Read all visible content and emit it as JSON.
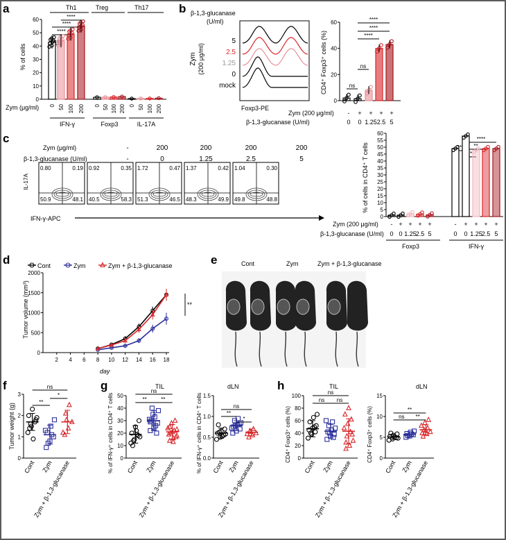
{
  "colors": {
    "red": "#d8262a",
    "darkred": "#a7151d",
    "pink": "#e98f97",
    "lightpink": "#f2b8be",
    "blue": "#2b2f9a",
    "black": "#000000"
  },
  "panels": {
    "a": {
      "letter": "a"
    },
    "b": {
      "letter": "b"
    },
    "c": {
      "letter": "c"
    },
    "d": {
      "letter": "d"
    },
    "e": {
      "letter": "e"
    },
    "f": {
      "letter": "f"
    },
    "g": {
      "letter": "g"
    },
    "h": {
      "letter": "h"
    }
  },
  "panel_a": {
    "headers": [
      "Th1",
      "Treg",
      "Th17"
    ],
    "ylabel": "% of cells",
    "zym_label": "Zym (μg/ml)",
    "doses": [
      "0",
      "50",
      "100",
      "200"
    ],
    "groups": [
      "IFN-γ",
      "Foxp3",
      "IL-17A"
    ],
    "sig": [
      "ns",
      "****",
      "****",
      "****"
    ]
  },
  "panel_b": {
    "title_line1": "β-1,3-glucanase",
    "title_line2": "(U/ml)",
    "zym_side_line1": "Zym",
    "zym_side_line2": "(200 μg/ml)",
    "track_labels": [
      "5",
      "2.5",
      "1.25",
      "0",
      "mock"
    ],
    "xaxis": "Foxp3-PE",
    "ylabel": "CD4⁺ Foxp3⁺ cells (%)",
    "row1_label": "Zym (200 μg/ml)",
    "row2_label": "β-1,3-glucanase (U/ml)",
    "row1_vals": [
      "-",
      "+",
      "+",
      "+",
      "+"
    ],
    "row2_vals": [
      "0",
      "0",
      "1.25",
      "2.5",
      "5"
    ],
    "sig": [
      "ns",
      "ns",
      "****",
      "****",
      "****"
    ]
  },
  "panel_c": {
    "zym_label": "Zym (μg/ml)",
    "gluc_label": "β-1,3-glucanase (U/ml)",
    "zym_vals": [
      "-",
      "200",
      "200",
      "200",
      "200"
    ],
    "gluc_vals": [
      "-",
      "0",
      "1.25",
      "2.5",
      "5"
    ],
    "quadrants": [
      [
        "0.80",
        "0.19",
        "50.9",
        "48.1"
      ],
      [
        "0.92",
        "0.35",
        "40.5",
        "58.3"
      ],
      [
        "1.72",
        "0.47",
        "51.3",
        "46.5"
      ],
      [
        "1.37",
        "0.42",
        "48.3",
        "49.9"
      ],
      [
        "1.04",
        "0.30",
        "49.8",
        "48.8"
      ]
    ],
    "yaxis": "IL-17A",
    "xaxis": "IFN-γ-APC",
    "bar_ylabel": "% of cells in CD4⁺ T cells",
    "row1_label": "Zym (200 μg/ml)",
    "row2_label": "β-1,3-glucanase (U/ml)",
    "row1_vals": [
      "-",
      "+",
      "+",
      "+",
      "+"
    ],
    "row2_vals": [
      "0",
      "0",
      "1.25",
      "2.5",
      "5"
    ],
    "groups": [
      "Foxp3",
      "IFN-γ"
    ],
    "sig": [
      "***",
      "*",
      "**",
      "****"
    ]
  },
  "panel_d": {
    "legend": [
      "Cont",
      "Zym",
      "Zym + β-1,3-glucanase"
    ],
    "ylabel": "Tumor volume (mm³)",
    "xlabel": "day",
    "sig": "**"
  },
  "panel_e": {
    "labels": [
      "Cont",
      "Zym",
      "Zym + β-1,3-glucanase"
    ]
  },
  "panel_f": {
    "ylabel": "Tumor weight (g)",
    "cats": [
      "Cont",
      "Zym",
      "Zym + β-1,3-glucanase"
    ],
    "sig": [
      "**",
      "*",
      "ns"
    ]
  },
  "panel_g": {
    "til_title": "TIL",
    "dln_title": "dLN",
    "ylabel_til": "% of IFN-γ⁺ cells in CD4⁺ T cells",
    "ylabel_dln": "% of IFN-γ⁺ cells in CD4⁺ T cells",
    "cats": [
      "Cont",
      "Zym",
      "Zym + β-1,3-glucanase"
    ],
    "sig_til": [
      "**",
      "**",
      "ns"
    ],
    "sig_dln": [
      "**",
      "*",
      "ns"
    ]
  },
  "panel_h": {
    "til_title": "TIL",
    "dln_title": "dLN",
    "ylabel": "CD4⁺ Foxp3⁺ cells (%)",
    "cats": [
      "Cont",
      "Zym",
      "Zym + β-1,3-glucanase"
    ],
    "sig_til": [
      "ns",
      "ns",
      "ns"
    ],
    "sig_dln": [
      "ns",
      "**",
      "**"
    ]
  },
  "chart_data": [
    {
      "type": "bar",
      "panel": "a",
      "title": "",
      "ylabel": "% of cells",
      "ylim": [
        0,
        60
      ],
      "yticks": [
        0,
        10,
        20,
        30,
        40,
        50,
        60
      ],
      "categories": [
        "IFN-γ 0",
        "IFN-γ 50",
        "IFN-γ 100",
        "IFN-γ 200",
        "Foxp3 0",
        "Foxp3 50",
        "Foxp3 100",
        "Foxp3 200",
        "IL-17A 0",
        "IL-17A 50",
        "IL-17A 100",
        "IL-17A 200"
      ],
      "values": [
        43,
        44,
        49,
        55,
        1.5,
        1.6,
        1.7,
        2,
        0.5,
        0.6,
        0.6,
        0.8
      ],
      "colors": [
        "black",
        "pink",
        "red",
        "darkred",
        "black",
        "pink",
        "red",
        "darkred",
        "black",
        "pink",
        "red",
        "darkred"
      ]
    },
    {
      "type": "bar",
      "panel": "b",
      "title": "",
      "ylabel": "CD4⁺ Foxp3⁺ cells (%)",
      "ylim": [
        0,
        60
      ],
      "yticks": [
        0,
        20,
        40,
        60
      ],
      "categories": [
        "0 -",
        "0 +",
        "1.25 +",
        "2.5 +",
        "5 +"
      ],
      "values": [
        2,
        1.5,
        8,
        40,
        43
      ],
      "colors": [
        "black",
        "black",
        "pink",
        "red",
        "darkred"
      ]
    },
    {
      "type": "bar",
      "panel": "c",
      "title": "",
      "ylabel": "% of cells in CD4⁺ T cells",
      "ylim": [
        0,
        60
      ],
      "yticks": [
        0,
        5,
        10,
        15,
        20,
        25,
        30,
        35,
        40,
        45,
        50,
        55,
        60
      ],
      "categories": [
        "Foxp3 0 -",
        "Foxp3 0 +",
        "Foxp3 1.25",
        "Foxp3 2.5",
        "Foxp3 5",
        "IFN-γ 0 -",
        "IFN-γ 0 +",
        "IFN-γ 1.25",
        "IFN-γ 2.5",
        "IFN-γ 5"
      ],
      "values": [
        1,
        1,
        2,
        1.8,
        1.2,
        49,
        58,
        48,
        49,
        49
      ],
      "colors": [
        "black",
        "black",
        "lightpink",
        "red",
        "darkred",
        "black",
        "black",
        "lightpink",
        "red",
        "darkred"
      ]
    },
    {
      "type": "line",
      "panel": "d",
      "title": "",
      "xlabel": "day",
      "ylabel": "Tumor volume (mm³)",
      "xlim": [
        0,
        18
      ],
      "ylim": [
        0,
        2000
      ],
      "xticks": [
        2,
        4,
        6,
        8,
        10,
        12,
        14,
        16,
        18
      ],
      "yticks": [
        0,
        500,
        1000,
        1500,
        2000
      ],
      "x": [
        8,
        10,
        12,
        14,
        16,
        18
      ],
      "series": [
        {
          "name": "Cont",
          "color": "black",
          "values": [
            100,
            200,
            350,
            650,
            1050,
            1450
          ],
          "errors": [
            30,
            40,
            60,
            80,
            100,
            150
          ]
        },
        {
          "name": "Zym",
          "color": "blue",
          "values": [
            70,
            120,
            170,
            300,
            600,
            850
          ],
          "errors": [
            20,
            30,
            40,
            60,
            100,
            150
          ]
        },
        {
          "name": "Zym + β-1,3-glucanase",
          "color": "red",
          "values": [
            100,
            190,
            300,
            580,
            950,
            1450
          ],
          "errors": [
            30,
            40,
            60,
            80,
            120,
            150
          ]
        }
      ]
    },
    {
      "type": "scatter",
      "panel": "f",
      "title": "",
      "ylabel": "Tumor weight (g)",
      "ylim": [
        0,
        3
      ],
      "yticks": [
        0,
        1,
        2,
        3
      ],
      "categories": [
        "Cont",
        "Zym",
        "Zym + β-1,3-glucanase"
      ],
      "series": [
        {
          "name": "Cont",
          "color": "black",
          "marker": "circle",
          "mean": 1.7,
          "sd": 0.4,
          "points": [
            1.2,
            1.5,
            1.7,
            2.0,
            2.3,
            1.8,
            1.4,
            0.9,
            1.9,
            1.6
          ]
        },
        {
          "name": "Zym",
          "color": "blue",
          "marker": "square",
          "mean": 1.1,
          "sd": 0.45,
          "points": [
            0.5,
            0.8,
            1.0,
            1.2,
            1.5,
            1.8,
            0.7,
            1.1,
            1.3
          ]
        },
        {
          "name": "Zym + β-1,3-glucanase",
          "color": "red",
          "marker": "triangle",
          "mean": 1.7,
          "sd": 0.55,
          "points": [
            1.1,
            1.4,
            1.7,
            2.1,
            2.5,
            1.2,
            1.8
          ]
        }
      ]
    },
    {
      "type": "scatter",
      "panel": "g-TIL",
      "title": "TIL",
      "ylabel": "% of IFN-γ⁺ cells in CD4⁺ T cells",
      "ylim": [
        0,
        50
      ],
      "yticks": [
        0,
        10,
        20,
        30,
        40,
        50
      ],
      "categories": [
        "Cont",
        "Zym",
        "Zym + β-1,3-glucanase"
      ],
      "series": [
        {
          "name": "Cont",
          "color": "black",
          "marker": "circle",
          "mean": 19,
          "sd": 7,
          "points": [
            12,
            15,
            18,
            20,
            25,
            30,
            10,
            22,
            17,
            14,
            19
          ]
        },
        {
          "name": "Zym",
          "color": "blue",
          "marker": "square",
          "mean": 30,
          "sd": 8,
          "points": [
            22,
            25,
            28,
            30,
            33,
            38,
            40,
            26,
            31,
            35,
            20,
            29,
            24
          ]
        },
        {
          "name": "Zym + β-1,3-glucanase",
          "color": "red",
          "marker": "triangle",
          "mean": 21,
          "sd": 6,
          "points": [
            14,
            16,
            18,
            20,
            22,
            24,
            28,
            30,
            19,
            21,
            17,
            25,
            13,
            23
          ]
        }
      ]
    },
    {
      "type": "scatter",
      "panel": "g-dLN",
      "title": "dLN",
      "ylabel": "% of IFN-γ⁺ cells in CD4⁺ T cells",
      "ylim": [
        0,
        1.5
      ],
      "yticks": [
        0,
        0.5,
        1.0,
        1.5
      ],
      "categories": [
        "Cont",
        "Zym",
        "Zym + β-1,3-glucanase"
      ],
      "series": [
        {
          "name": "Cont",
          "color": "black",
          "marker": "circle",
          "mean": 0.6,
          "sd": 0.12,
          "points": [
            0.45,
            0.5,
            0.55,
            0.6,
            0.65,
            0.7,
            0.8,
            0.52,
            0.58,
            0.62
          ]
        },
        {
          "name": "Zym",
          "color": "blue",
          "marker": "square",
          "mean": 0.78,
          "sd": 0.12,
          "points": [
            0.6,
            0.65,
            0.7,
            0.75,
            0.8,
            0.85,
            0.9,
            0.95,
            0.72,
            0.78,
            0.82
          ]
        },
        {
          "name": "Zym + β-1,3-glucanase",
          "color": "red",
          "marker": "triangle",
          "mean": 0.62,
          "sd": 0.08,
          "points": [
            0.5,
            0.55,
            0.6,
            0.65,
            0.7,
            0.58,
            0.63
          ]
        }
      ]
    },
    {
      "type": "scatter",
      "panel": "h-TIL",
      "title": "TIL",
      "ylabel": "CD4⁺ Foxp3⁺ cells (%)",
      "ylim": [
        0,
        100
      ],
      "yticks": [
        0,
        20,
        40,
        60,
        80,
        100
      ],
      "categories": [
        "Cont",
        "Zym",
        "Zym + β-1,3-glucanase"
      ],
      "series": [
        {
          "name": "Cont",
          "color": "black",
          "marker": "circle",
          "mean": 47,
          "sd": 13,
          "points": [
            32,
            38,
            42,
            45,
            48,
            52,
            58,
            65,
            70,
            40,
            50
          ]
        },
        {
          "name": "Zym",
          "color": "blue",
          "marker": "square",
          "mean": 43,
          "sd": 11,
          "points": [
            30,
            35,
            38,
            42,
            45,
            48,
            52,
            58,
            60,
            40,
            33
          ]
        },
        {
          "name": "Zym + β-1,3-glucanase",
          "color": "red",
          "marker": "triangle",
          "mean": 43,
          "sd": 20,
          "points": [
            15,
            20,
            28,
            35,
            42,
            48,
            55,
            62,
            70,
            80,
            38,
            25
          ]
        }
      ]
    },
    {
      "type": "scatter",
      "panel": "h-dLN",
      "title": "dLN",
      "ylabel": "CD4⁺ Foxp3⁺ cells (%)",
      "ylim": [
        0,
        15
      ],
      "yticks": [
        0,
        5,
        10,
        15
      ],
      "categories": [
        "Cont",
        "Zym",
        "Zym + β-1,3-glucanase"
      ],
      "series": [
        {
          "name": "Cont",
          "color": "black",
          "marker": "circle",
          "mean": 5.1,
          "sd": 0.6,
          "points": [
            4.3,
            4.6,
            4.9,
            5.2,
            5.5,
            5.8,
            6.0,
            5.0,
            4.8
          ]
        },
        {
          "name": "Zym",
          "color": "blue",
          "marker": "square",
          "mean": 5.7,
          "sd": 0.6,
          "points": [
            5.0,
            5.3,
            5.6,
            5.9,
            6.2,
            6.5,
            5.4,
            5.8
          ]
        },
        {
          "name": "Zym + β-1,3-glucanase",
          "color": "red",
          "marker": "triangle",
          "mean": 6.8,
          "sd": 1.2,
          "points": [
            5.2,
            5.8,
            6.3,
            6.8,
            7.2,
            7.8,
            8.5,
            9.2,
            6.0,
            6.6
          ]
        }
      ]
    }
  ]
}
